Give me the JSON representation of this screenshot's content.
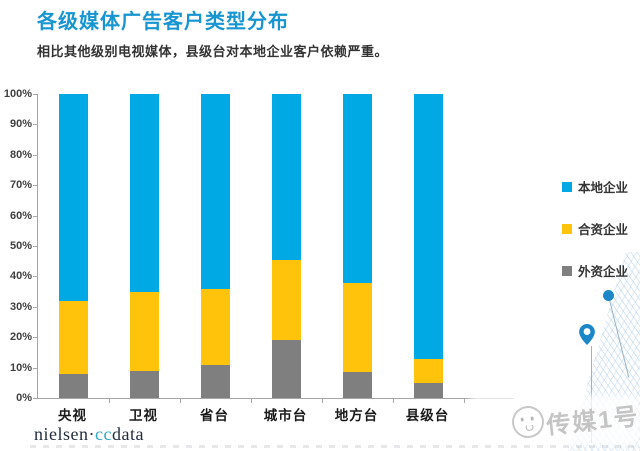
{
  "header": {
    "title": "各级媒体广告客户类型分布",
    "subtitle": "相比其他级别电视媒体，县级台对本地企业客户依赖严重。"
  },
  "chart_data": {
    "type": "bar",
    "subtype": "stacked-percent-column",
    "title": "各级媒体广告客户类型分布",
    "categories": [
      "央视",
      "卫视",
      "省台",
      "城市台",
      "地方台",
      "县级台"
    ],
    "series": [
      {
        "name": "外资企业",
        "color": "#7F7F7F",
        "values": [
          8,
          9,
          11,
          19,
          8.5,
          5
        ]
      },
      {
        "name": "合资企业",
        "color": "#FFC30B",
        "values": [
          24,
          26,
          25,
          26.5,
          29.5,
          8
        ]
      },
      {
        "name": "本地企业",
        "color": "#00A9E4",
        "values": [
          68,
          65,
          64,
          54.5,
          62,
          87
        ]
      }
    ],
    "stack_order_bottom_to_top": [
      "外资企业",
      "合资企业",
      "本地企业"
    ],
    "legend_order_top_to_bottom": [
      "本地企业",
      "合资企业",
      "外资企业"
    ],
    "legend_position": "right",
    "ylim": [
      0,
      100
    ],
    "y_ticks": [
      "100%",
      "90%",
      "80%",
      "70%",
      "60%",
      "50%",
      "40%",
      "30%",
      "20%",
      "10%",
      "0%"
    ],
    "grid": false
  },
  "footer": {
    "logo": {
      "part1": "nielsen",
      "separator": "·",
      "part2": "cc",
      "part3": "data"
    },
    "watermark": "传媒1号"
  },
  "colors": {
    "title": "#1795D1",
    "local_blue": "#00A9E4",
    "joint_yellow": "#FFC30B",
    "foreign_gray": "#7F7F7F",
    "pin_blue": "#1B86C8"
  }
}
